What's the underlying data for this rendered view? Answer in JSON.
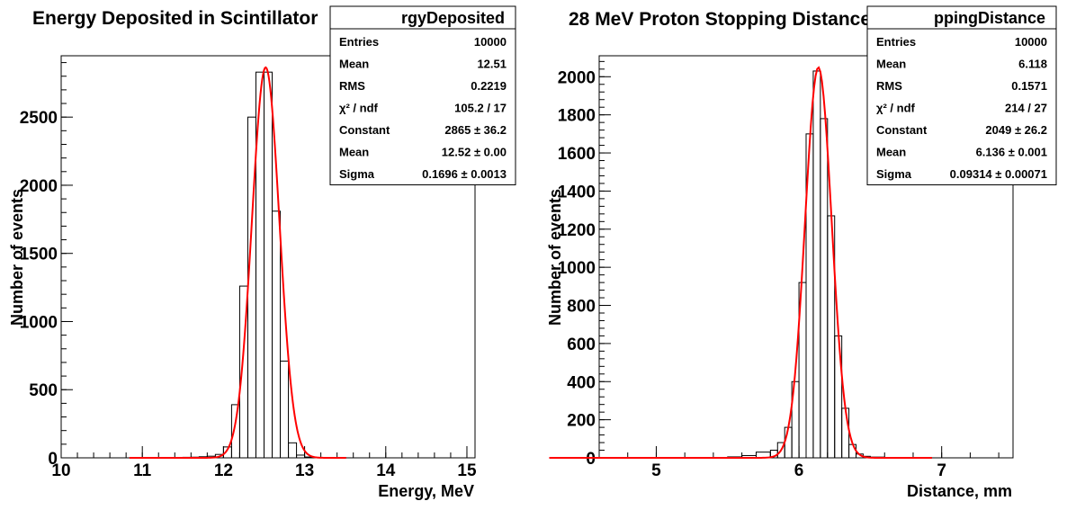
{
  "chart_data": [
    {
      "type": "histogram",
      "title": "Energy Deposited in Scintillator",
      "xlabel": "Energy, MeV",
      "ylabel": "Number of events",
      "xlim": [
        10,
        15.1
      ],
      "ylim": [
        0,
        2950
      ],
      "x_ticks": [
        "10",
        "11",
        "12",
        "13",
        "14",
        "15"
      ],
      "y_ticks": [
        "0",
        "500",
        "1000",
        "1500",
        "2000",
        "2500"
      ],
      "bins": [
        {
          "x": 11.45,
          "y": 3
        },
        {
          "x": 11.55,
          "y": 4
        },
        {
          "x": 11.65,
          "y": 5
        },
        {
          "x": 11.75,
          "y": 8
        },
        {
          "x": 11.85,
          "y": 12
        },
        {
          "x": 11.95,
          "y": 25
        },
        {
          "x": 12.05,
          "y": 80
        },
        {
          "x": 12.15,
          "y": 390
        },
        {
          "x": 12.25,
          "y": 1260
        },
        {
          "x": 12.35,
          "y": 2500
        },
        {
          "x": 12.45,
          "y": 2830
        },
        {
          "x": 12.55,
          "y": 2830
        },
        {
          "x": 12.65,
          "y": 1810
        },
        {
          "x": 12.75,
          "y": 710
        },
        {
          "x": 12.85,
          "y": 110
        },
        {
          "x": 12.95,
          "y": 20
        },
        {
          "x": 13.05,
          "y": 6
        },
        {
          "x": 13.15,
          "y": 3
        }
      ],
      "fit": {
        "constant": 2865,
        "mean": 12.52,
        "sigma": 0.1696,
        "color": "#ff0000"
      },
      "stats": {
        "name": "rgyDeposited",
        "rows": [
          {
            "label": "Entries",
            "value": "10000"
          },
          {
            "label": "Mean",
            "value": "12.51"
          },
          {
            "label": "RMS",
            "value": "0.2219"
          },
          {
            "label": "χ² / ndf",
            "value": "105.2 / 17"
          },
          {
            "label": "Constant",
            "value": "2865 ± 36.2"
          },
          {
            "label": "Mean",
            "value": "12.52 ± 0.00"
          },
          {
            "label": "Sigma",
            "value": "0.1696 ± 0.0013"
          }
        ]
      }
    },
    {
      "type": "histogram",
      "title": "28 MeV Proton Stopping Distance",
      "xlabel": "Distance, mm",
      "ylabel": "Number of events",
      "xlim": [
        4.6,
        7.5
      ],
      "ylim": [
        0,
        2110
      ],
      "x_ticks": [
        "5",
        "6",
        "7"
      ],
      "y_ticks": [
        "0",
        "200",
        "400",
        "600",
        "800",
        "1000",
        "1200",
        "1400",
        "1600",
        "1800",
        "2000"
      ],
      "bins": [
        {
          "x": 5.45,
          "y": 2
        },
        {
          "x": 5.55,
          "y": 5
        },
        {
          "x": 5.65,
          "y": 12
        },
        {
          "x": 5.75,
          "y": 30
        },
        {
          "x": 5.825,
          "y": 40
        },
        {
          "x": 5.875,
          "y": 80
        },
        {
          "x": 5.925,
          "y": 160
        },
        {
          "x": 5.975,
          "y": 400
        },
        {
          "x": 6.025,
          "y": 920
        },
        {
          "x": 6.075,
          "y": 1700
        },
        {
          "x": 6.125,
          "y": 2030
        },
        {
          "x": 6.175,
          "y": 1780
        },
        {
          "x": 6.225,
          "y": 1270
        },
        {
          "x": 6.275,
          "y": 640
        },
        {
          "x": 6.325,
          "y": 260
        },
        {
          "x": 6.375,
          "y": 70
        },
        {
          "x": 6.425,
          "y": 20
        },
        {
          "x": 6.475,
          "y": 8
        },
        {
          "x": 6.55,
          "y": 4
        },
        {
          "x": 6.65,
          "y": 2
        }
      ],
      "fit": {
        "constant": 2049,
        "mean": 6.136,
        "sigma": 0.09314,
        "color": "#ff0000"
      },
      "stats": {
        "name": "ppingDistance",
        "rows": [
          {
            "label": "Entries",
            "value": "10000"
          },
          {
            "label": "Mean",
            "value": "6.118"
          },
          {
            "label": "RMS",
            "value": "0.1571"
          },
          {
            "label": "χ² / ndf",
            "value": "214 / 27"
          },
          {
            "label": "Constant",
            "value": "2049 ± 26.2"
          },
          {
            "label": "Mean",
            "value": "6.136 ± 0.001"
          },
          {
            "label": "Sigma",
            "value": "0.09314 ± 0.00071"
          }
        ]
      }
    }
  ]
}
